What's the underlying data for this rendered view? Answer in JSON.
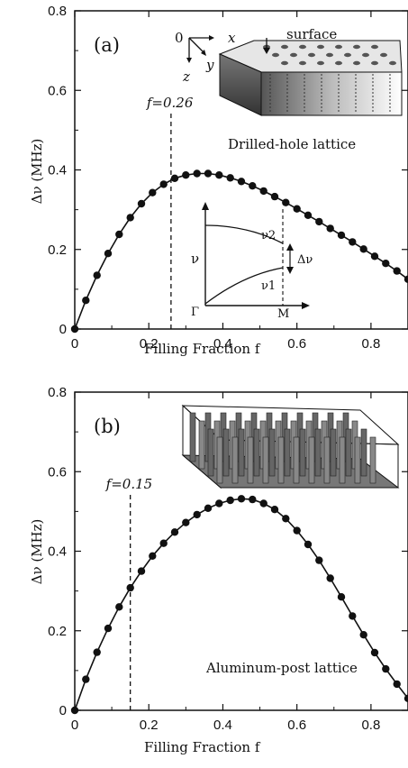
{
  "chart_data": [
    {
      "type": "line",
      "panel_label": "(a)",
      "xlabel": "Filling Fraction f",
      "ylabel": "Δν (MHz)",
      "xlim": [
        0,
        0.9
      ],
      "ylim": [
        0,
        0.8
      ],
      "xticks": [
        "0",
        "0.2",
        "0.4",
        "0.6",
        "0.8"
      ],
      "yticks": [
        "0",
        "0.2",
        "0.4",
        "0.6",
        "0.8"
      ],
      "annotation": "f=0.26",
      "marker_x": 0.26,
      "lattice_label": "Drilled-hole lattice",
      "inset_3d": {
        "axis_origin": "0",
        "axis_x": "x",
        "axis_y": "y",
        "axis_z": "z",
        "surface_label": "surface"
      },
      "inset_band": {
        "y_label": "ν",
        "nu1": "ν1",
        "nu2": "ν2",
        "delta": "Δν",
        "gamma": "Γ",
        "m": "M"
      },
      "x": [
        0,
        0.03,
        0.06,
        0.09,
        0.12,
        0.15,
        0.18,
        0.21,
        0.24,
        0.27,
        0.3,
        0.33,
        0.36,
        0.39,
        0.42,
        0.45,
        0.48,
        0.51,
        0.54,
        0.57,
        0.6,
        0.63,
        0.66,
        0.69,
        0.72,
        0.75,
        0.78,
        0.81,
        0.84,
        0.87,
        0.9
      ],
      "y": [
        0.0,
        0.072,
        0.135,
        0.19,
        0.238,
        0.28,
        0.315,
        0.343,
        0.364,
        0.379,
        0.387,
        0.391,
        0.391,
        0.387,
        0.38,
        0.371,
        0.36,
        0.347,
        0.333,
        0.318,
        0.302,
        0.286,
        0.27,
        0.253,
        0.236,
        0.219,
        0.201,
        0.183,
        0.165,
        0.146,
        0.125
      ]
    },
    {
      "type": "line",
      "panel_label": "(b)",
      "xlabel": "Filling Fraction f",
      "ylabel": "Δν (MHz)",
      "xlim": [
        0,
        0.9
      ],
      "ylim": [
        0,
        0.8
      ],
      "xticks": [
        "0",
        "0.2",
        "0.4",
        "0.6",
        "0.8"
      ],
      "yticks": [
        "0",
        "0.2",
        "0.4",
        "0.6",
        "0.8"
      ],
      "annotation": "f=0.15",
      "marker_x": 0.15,
      "lattice_label": "Aluminum-post lattice",
      "x": [
        0,
        0.03,
        0.06,
        0.09,
        0.12,
        0.15,
        0.18,
        0.21,
        0.24,
        0.27,
        0.3,
        0.33,
        0.36,
        0.39,
        0.42,
        0.45,
        0.48,
        0.51,
        0.54,
        0.57,
        0.6,
        0.63,
        0.66,
        0.69,
        0.72,
        0.75,
        0.78,
        0.81,
        0.84,
        0.87,
        0.9
      ],
      "y": [
        0.0,
        0.078,
        0.146,
        0.206,
        0.26,
        0.308,
        0.35,
        0.388,
        0.42,
        0.448,
        0.472,
        0.492,
        0.508,
        0.52,
        0.528,
        0.532,
        0.53,
        0.52,
        0.505,
        0.482,
        0.452,
        0.417,
        0.377,
        0.332,
        0.285,
        0.237,
        0.19,
        0.145,
        0.104,
        0.066,
        0.03
      ]
    }
  ]
}
